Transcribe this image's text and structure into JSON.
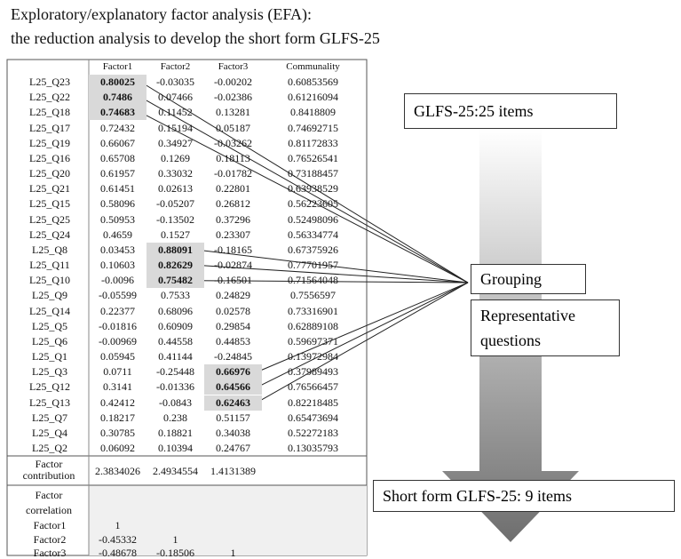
{
  "title_lines": [
    "Exploratory/explanatory factor analysis (EFA):",
    "the reduction analysis to develop the short form GLFS-25"
  ],
  "table": {
    "header": [
      "Factor1",
      "Factor2",
      "Factor3",
      "Communality"
    ],
    "rows": [
      [
        "L25_Q23",
        "0.80025",
        "-0.03035",
        "-0.00202",
        "0.60853569"
      ],
      [
        "L25_Q22",
        "0.7486",
        "0.07466",
        "-0.02386",
        "0.61216094"
      ],
      [
        "L25_Q18",
        "0.74683",
        "0.11452",
        "0.13281",
        "0.8418809"
      ],
      [
        "L25_Q17",
        "0.72432",
        "0.15194",
        "0.05187",
        "0.74692715"
      ],
      [
        "L25_Q19",
        "0.66067",
        "0.34927",
        "-0.03262",
        "0.81172833"
      ],
      [
        "L25_Q16",
        "0.65708",
        "0.1269",
        "0.18113",
        "0.76526541"
      ],
      [
        "L25_Q20",
        "0.61957",
        "0.33032",
        "-0.01782",
        "0.73188457"
      ],
      [
        "L25_Q21",
        "0.61451",
        "0.02613",
        "0.22801",
        "0.63938529"
      ],
      [
        "L25_Q15",
        "0.58096",
        "-0.05207",
        "0.26812",
        "0.56223605"
      ],
      [
        "L25_Q25",
        "0.50953",
        "-0.13502",
        "0.37296",
        "0.52498096"
      ],
      [
        "L25_Q24",
        "0.4659",
        "0.1527",
        "0.23307",
        "0.56334774"
      ],
      [
        "L25_Q8",
        "0.03453",
        "0.88091",
        "-0.18165",
        "0.67375926"
      ],
      [
        "L25_Q11",
        "0.10603",
        "0.82629",
        "-0.02874",
        "0.77701957"
      ],
      [
        "L25_Q10",
        "-0.0096",
        "0.75482",
        "-0.16501",
        "0.71564048"
      ],
      [
        "L25_Q9",
        "-0.05599",
        "0.7533",
        "0.24829",
        "0.7556597"
      ],
      [
        "L25_Q14",
        "0.22377",
        "0.68096",
        "0.02578",
        "0.73316901"
      ],
      [
        "L25_Q5",
        "-0.01816",
        "0.60909",
        "0.29854",
        "0.62889108"
      ],
      [
        "L25_Q6",
        "-0.00969",
        "0.44558",
        "0.44853",
        "0.59697371"
      ],
      [
        "L25_Q1",
        "0.05945",
        "0.41144",
        "-0.24845",
        "0.13972984"
      ],
      [
        "L25_Q3",
        "0.0711",
        "-0.25448",
        "0.66976",
        "0.37989493"
      ],
      [
        "L25_Q12",
        "0.3141",
        "-0.01336",
        "0.64566",
        "0.76566457"
      ],
      [
        "L25_Q13",
        "0.42412",
        "-0.0843",
        "0.62463",
        "0.82218485"
      ],
      [
        "L25_Q7",
        "0.18217",
        "0.238",
        "0.51157",
        "0.65473694"
      ],
      [
        "L25_Q4",
        "0.30785",
        "0.18821",
        "0.34038",
        "0.52272183"
      ],
      [
        "L25_Q2",
        "0.06092",
        "0.10394",
        "0.24767",
        "0.13035793"
      ]
    ],
    "highlighted": [
      {
        "row": 0,
        "col": 1
      },
      {
        "row": 1,
        "col": 1
      },
      {
        "row": 2,
        "col": 1
      },
      {
        "row": 11,
        "col": 2
      },
      {
        "row": 12,
        "col": 2
      },
      {
        "row": 13,
        "col": 2
      },
      {
        "row": 19,
        "col": 3
      },
      {
        "row": 20,
        "col": 3
      },
      {
        "row": 21,
        "col": 3
      }
    ],
    "contribution": {
      "label": "Factor contribution",
      "values": [
        "2.3834026",
        "2.4934554",
        "1.4131389"
      ]
    },
    "correlation": {
      "label": "Factor correlation",
      "rows": [
        [
          "Factor1",
          "1"
        ],
        [
          "Factor2",
          "-0.45332",
          "1"
        ],
        [
          "Factor3",
          "-0.48678",
          "-0.18506",
          "1"
        ]
      ]
    }
  },
  "diagram": {
    "start": "GLFS-25:25 items",
    "grouping": "Grouping",
    "representative": "Representative questions",
    "end": "Short form GLFS-25: 9 items"
  }
}
